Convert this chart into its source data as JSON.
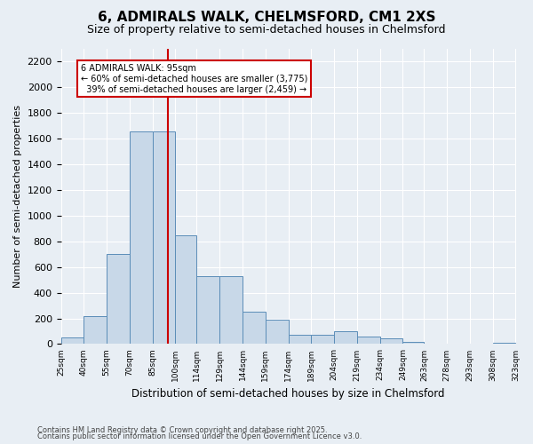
{
  "title": "6, ADMIRALS WALK, CHELMSFORD, CM1 2XS",
  "subtitle": "Size of property relative to semi-detached houses in Chelmsford",
  "xlabel": "Distribution of semi-detached houses by size in Chelmsford",
  "ylabel": "Number of semi-detached properties",
  "property_size": 95,
  "property_label": "6 ADMIRALS WALK: 95sqm",
  "smaller_pct": 60,
  "smaller_count": 3775,
  "larger_pct": 39,
  "larger_count": 2459,
  "bar_color": "#c8d8e8",
  "bar_edge_color": "#5b8db8",
  "red_line_color": "#cc0000",
  "background_color": "#e8eef4",
  "grid_color": "#ffffff",
  "bins": [
    25,
    40,
    55,
    70,
    85,
    100,
    114,
    129,
    144,
    159,
    174,
    189,
    204,
    219,
    234,
    249,
    263,
    278,
    293,
    308,
    323
  ],
  "bin_labels": [
    "25sqm",
    "40sqm",
    "55sqm",
    "70sqm",
    "85sqm",
    "100sqm",
    "114sqm",
    "129sqm",
    "144sqm",
    "159sqm",
    "174sqm",
    "189sqm",
    "204sqm",
    "219sqm",
    "234sqm",
    "249sqm",
    "263sqm",
    "278sqm",
    "293sqm",
    "308sqm",
    "323sqm"
  ],
  "values": [
    50,
    220,
    700,
    1660,
    1660,
    850,
    530,
    530,
    250,
    190,
    75,
    75,
    100,
    55,
    45,
    20,
    5,
    5,
    0,
    10
  ],
  "ylim": [
    0,
    2300
  ],
  "yticks": [
    0,
    200,
    400,
    600,
    800,
    1000,
    1200,
    1400,
    1600,
    1800,
    2000,
    2200
  ],
  "footer_line1": "Contains HM Land Registry data © Crown copyright and database right 2025.",
  "footer_line2": "Contains public sector information licensed under the Open Government Licence v3.0."
}
